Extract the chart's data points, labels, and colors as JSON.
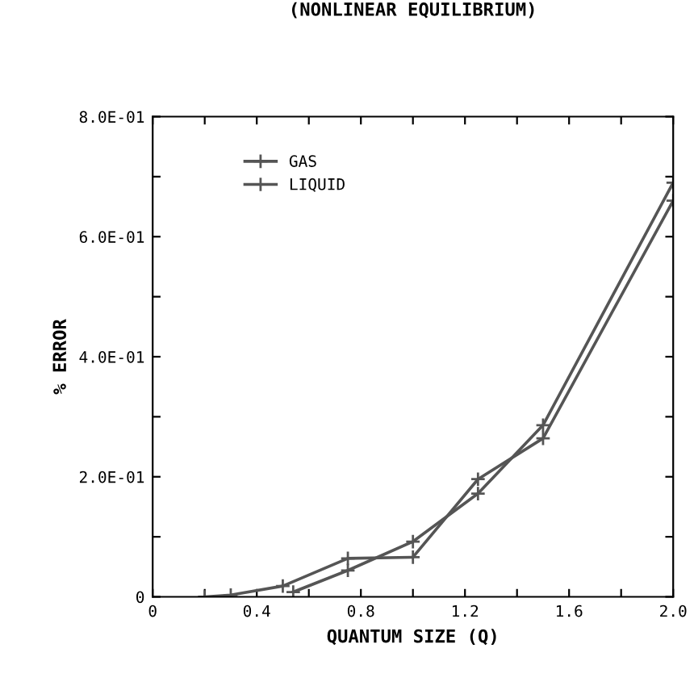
{
  "chart_data": {
    "type": "line",
    "title": "(NONLINEAR EQUILIBRIUM)",
    "xlabel": "QUANTUM SIZE (Q)",
    "ylabel": "% ERROR",
    "series": [
      {
        "name": "GAS",
        "color": "#555555",
        "x": [
          0.2,
          0.3,
          0.5,
          0.75,
          1.0,
          1.25,
          1.5,
          2.0
        ],
        "values": [
          0,
          0.003,
          0.018,
          0.064,
          0.066,
          0.196,
          0.264,
          0.66
        ]
      },
      {
        "name": "LIQUID",
        "color": "#555555",
        "x": [
          0.54,
          0.75,
          1.0,
          1.25,
          1.5,
          2.0
        ],
        "values": [
          0.008,
          0.044,
          0.092,
          0.172,
          0.286,
          0.69
        ]
      }
    ],
    "xlim": [
      0,
      2.0
    ],
    "ylim": [
      0,
      0.8
    ],
    "xticks": [
      0,
      {
        "value": 0.2,
        "label": null
      },
      {
        "value": 0.4,
        "label": "0.4"
      },
      {
        "value": 0.6,
        "label": null
      },
      {
        "value": 0.8,
        "label": "0.8"
      },
      {
        "value": 1.0,
        "label": null
      },
      {
        "value": 1.2,
        "label": "1.2"
      },
      {
        "value": 1.4,
        "label": null
      },
      {
        "value": 1.6,
        "label": "1.6"
      },
      {
        "value": 1.8,
        "label": null
      },
      {
        "value": 2.0,
        "label": "2.0"
      }
    ],
    "yticks": [
      0,
      {
        "value": 0.1,
        "label": null
      },
      {
        "value": 0.2,
        "label": "2.0E-01"
      },
      {
        "value": 0.3,
        "label": null
      },
      {
        "value": 0.4,
        "label": "4.0E-01"
      },
      {
        "value": 0.5,
        "label": null
      },
      {
        "value": 0.6,
        "label": "6.0E-01"
      },
      {
        "value": 0.7,
        "label": null
      },
      {
        "value": 0.8,
        "label": "8.0E-01"
      }
    ],
    "marker": "cross",
    "grid": false,
    "legend": "top left"
  }
}
